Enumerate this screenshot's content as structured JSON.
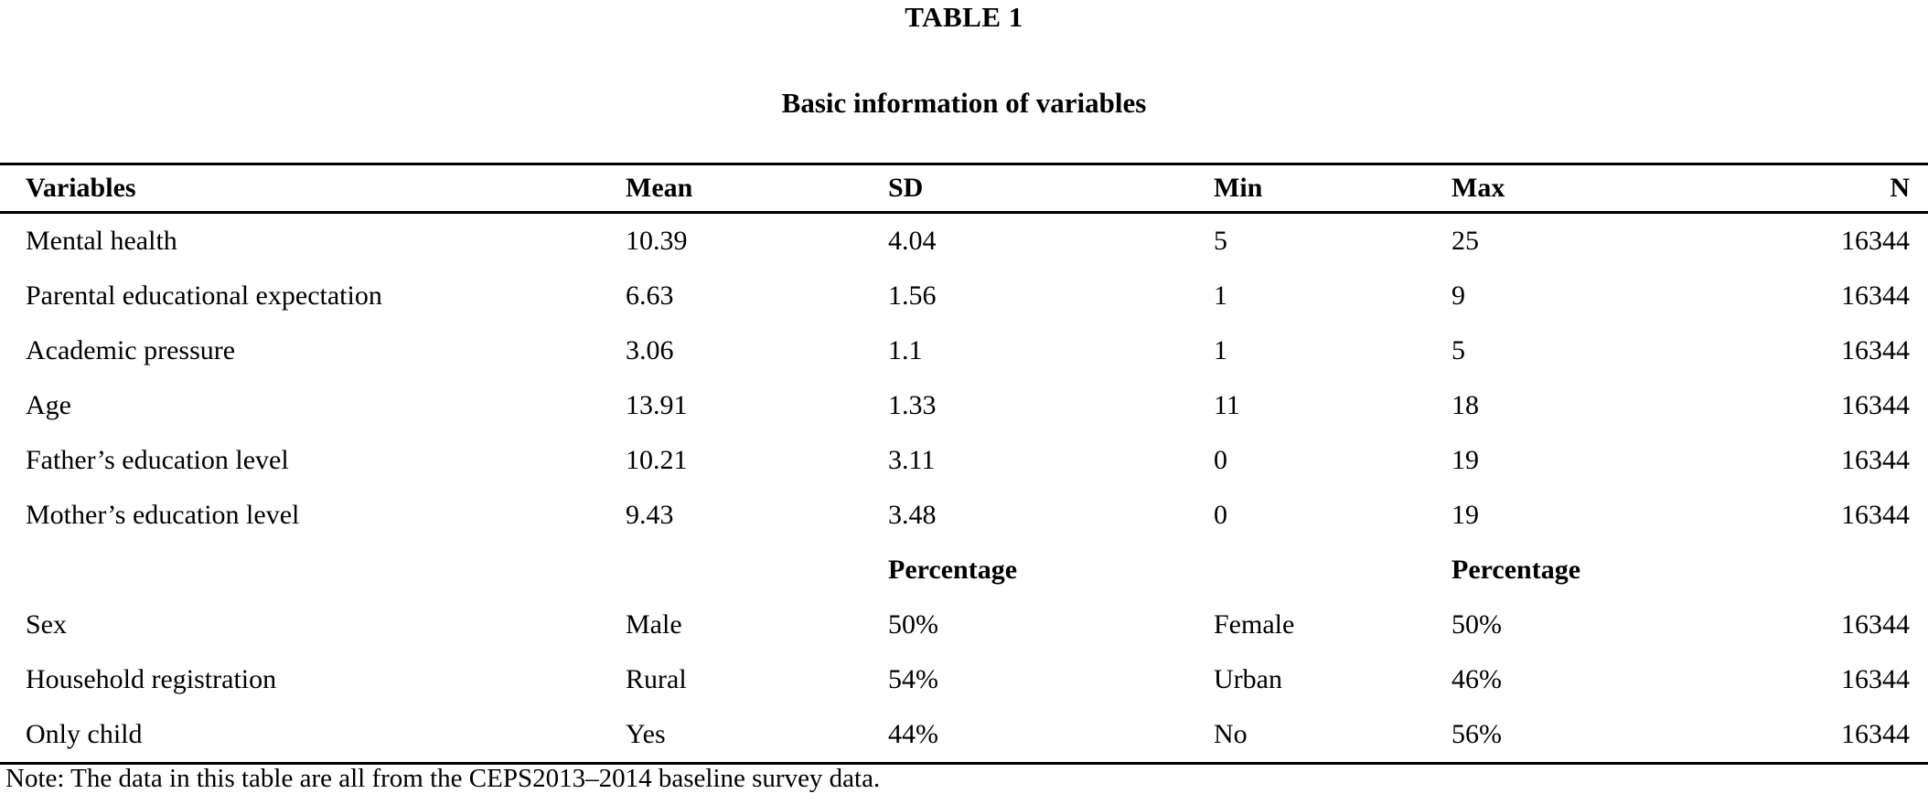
{
  "table": {
    "label": "TABLE 1",
    "caption": "Basic information of variables",
    "columns": [
      "Variables",
      "Mean",
      "SD",
      "Min",
      "Max",
      "N"
    ],
    "rows": [
      {
        "bold": false,
        "cells": [
          "Mental health",
          "10.39",
          "4.04",
          "5",
          "25",
          "16344"
        ]
      },
      {
        "bold": false,
        "cells": [
          "Parental educational expectation",
          "6.63",
          "1.56",
          "1",
          "9",
          "16344"
        ]
      },
      {
        "bold": false,
        "cells": [
          "Academic pressure",
          "3.06",
          "1.1",
          "1",
          "5",
          "16344"
        ]
      },
      {
        "bold": false,
        "cells": [
          "Age",
          "13.91",
          "1.33",
          "11",
          "18",
          "16344"
        ]
      },
      {
        "bold": false,
        "cells": [
          "Father’s education level",
          "10.21",
          "3.11",
          "0",
          "19",
          "16344"
        ]
      },
      {
        "bold": false,
        "cells": [
          "Mother’s education level",
          "9.43",
          "3.48",
          "0",
          "19",
          "16344"
        ]
      },
      {
        "bold": true,
        "cells": [
          "",
          "",
          "Percentage",
          "",
          "Percentage",
          ""
        ]
      },
      {
        "bold": false,
        "cells": [
          "Sex",
          "Male",
          "50%",
          "Female",
          "50%",
          "16344"
        ]
      },
      {
        "bold": false,
        "cells": [
          "Household registration",
          "Rural",
          "54%",
          "Urban",
          "46%",
          "16344"
        ]
      },
      {
        "bold": false,
        "cells": [
          "Only child",
          "Yes",
          "44%",
          "No",
          "56%",
          "16344"
        ]
      }
    ],
    "note": "Note: The data in this table are all from the CEPS2013–2014 baseline survey data.",
    "text_color": "#000000",
    "background_color": "#ffffff"
  }
}
